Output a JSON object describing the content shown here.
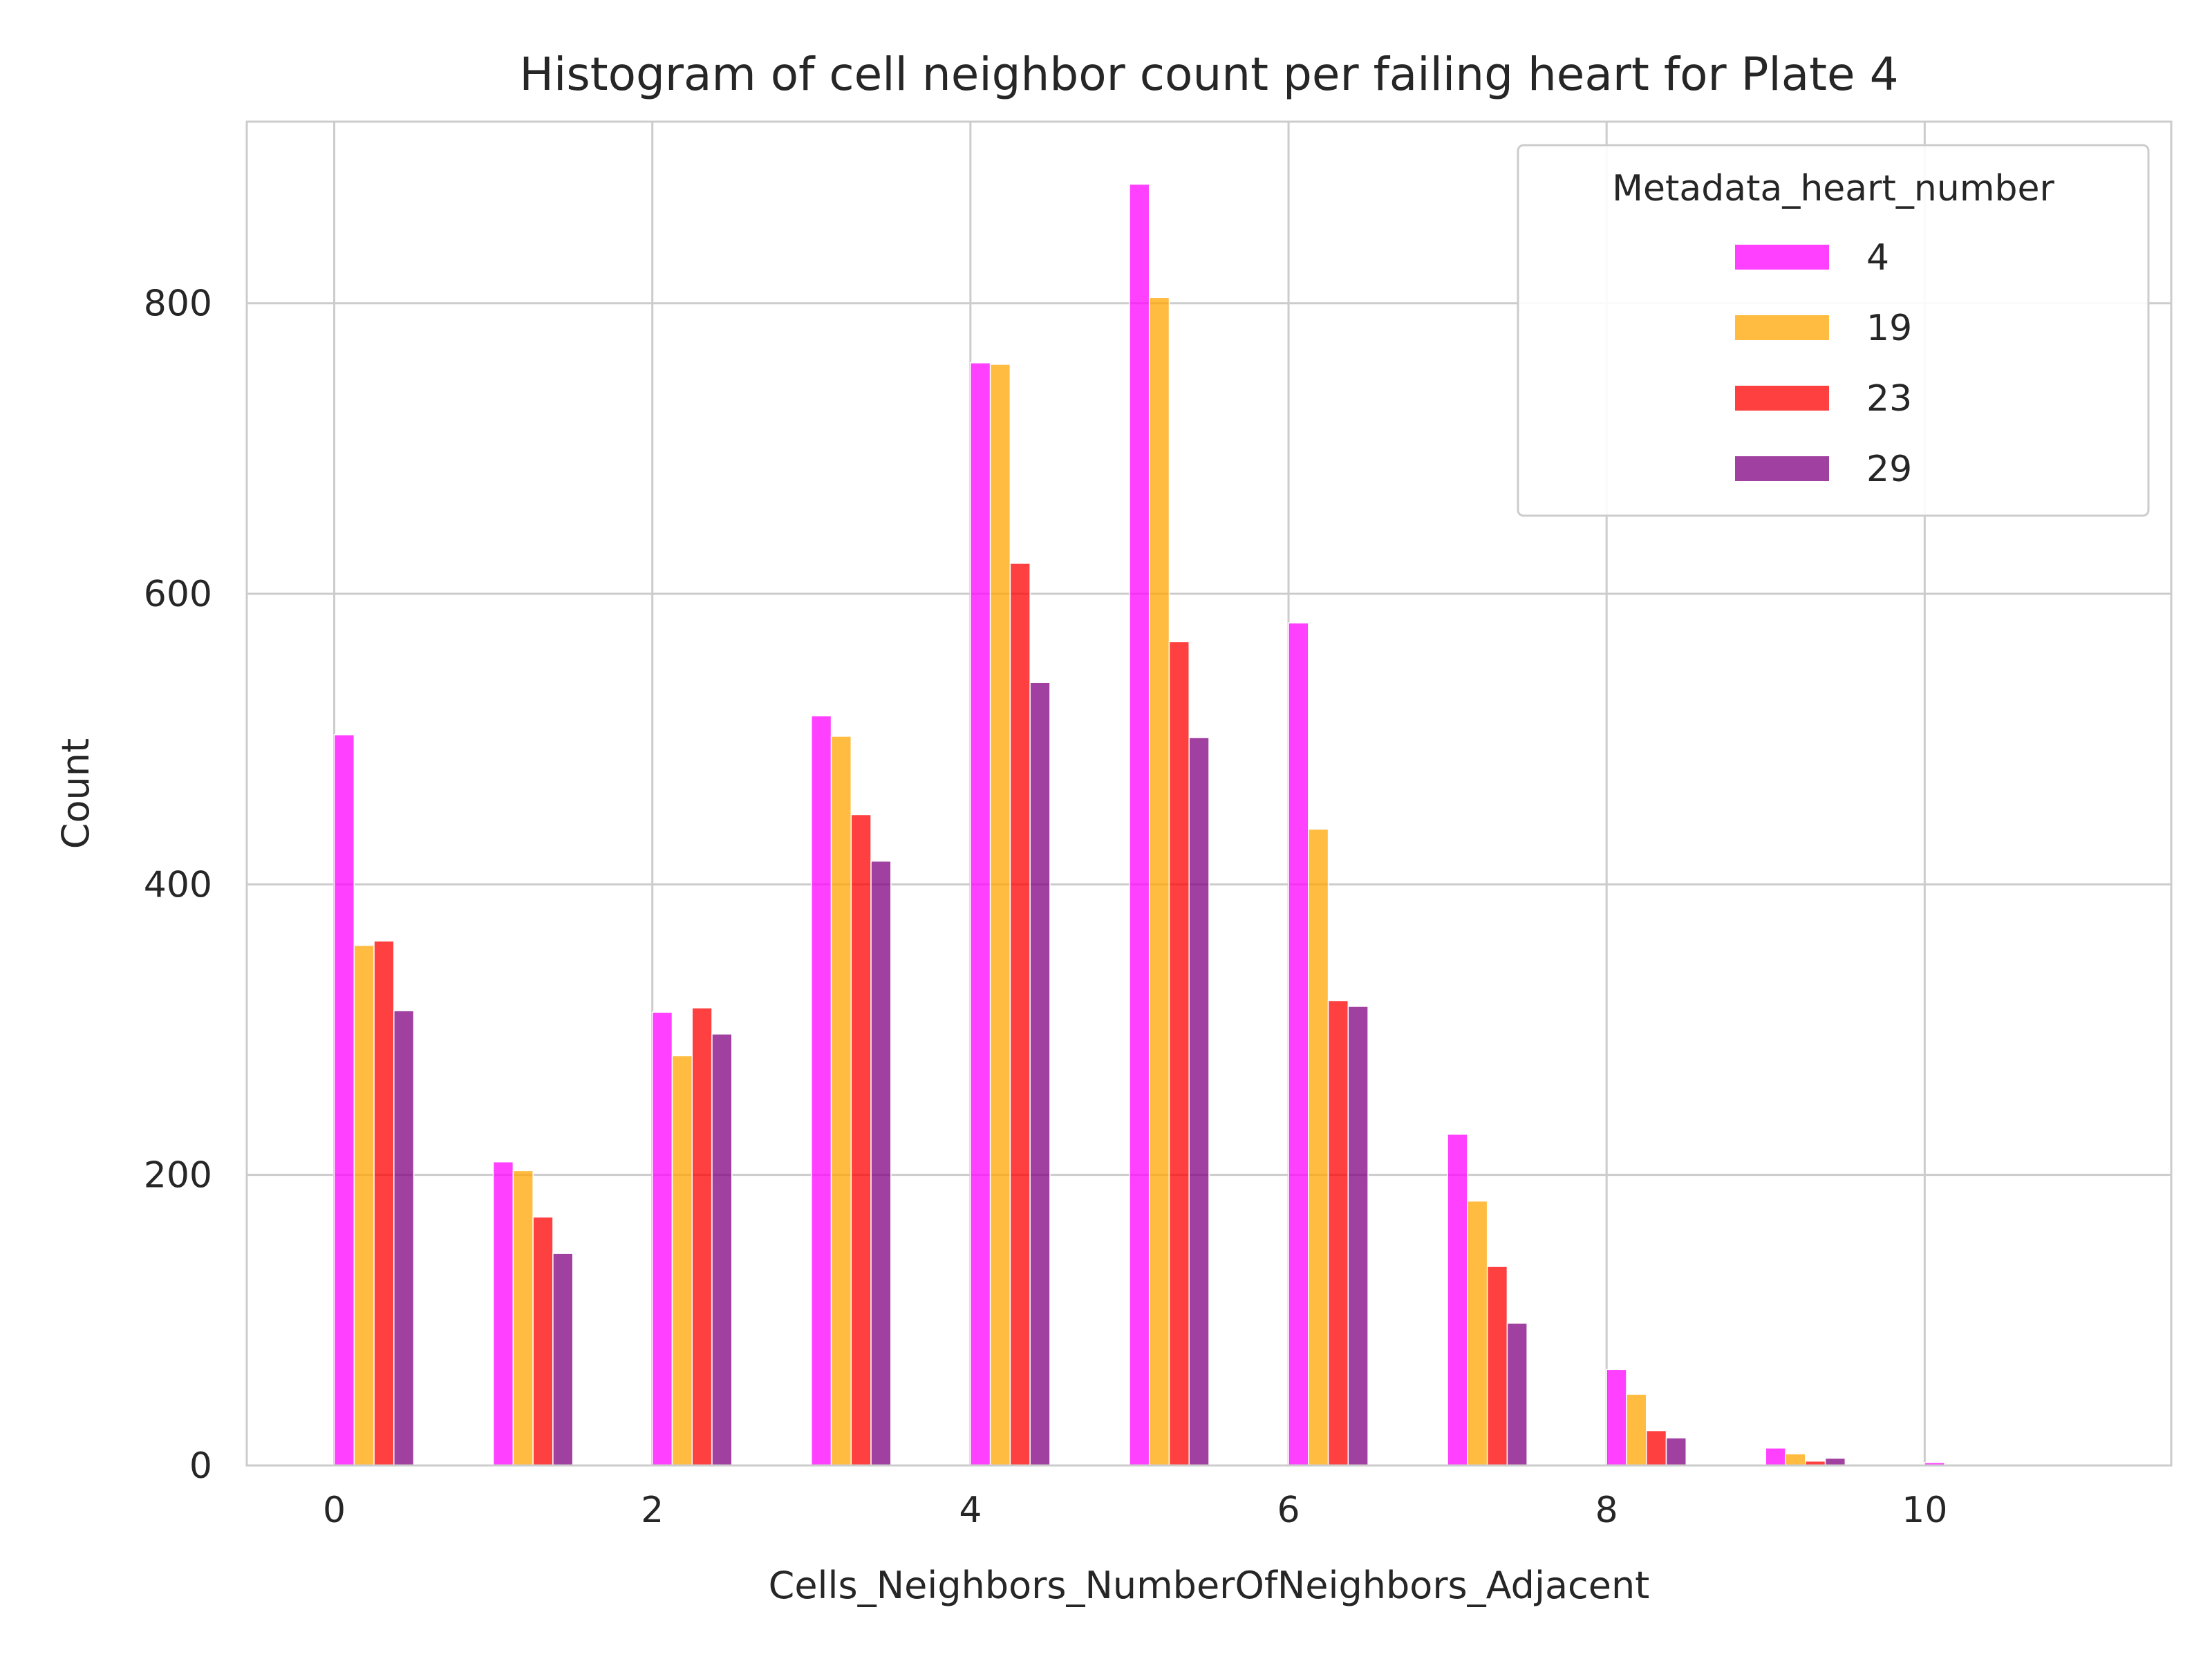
{
  "chart_data": {
    "type": "bar",
    "title": "Histogram of cell neighbor count per failing heart for Plate 4",
    "xlabel": "Cells_Neighbors_NumberOfNeighbors_Adjacent",
    "ylabel": "Count",
    "xlim": [
      -0.55,
      11.55
    ],
    "ylim": [
      0,
      925
    ],
    "xticks": [
      0,
      2,
      4,
      6,
      8,
      10
    ],
    "yticks": [
      0,
      200,
      400,
      600,
      800
    ],
    "grid": true,
    "legend": {
      "title": "Metadata_heart_number",
      "position": "top-right"
    },
    "bins": [
      0,
      1,
      2,
      3,
      4,
      5,
      6,
      7,
      8,
      9,
      10,
      11
    ],
    "series": [
      {
        "name": "4",
        "color": "#ff00ff",
        "values": [
          503,
          209,
          312,
          516,
          759,
          882,
          580,
          228,
          66,
          12,
          2,
          0
        ]
      },
      {
        "name": "19",
        "color": "#ffa500",
        "values": [
          358,
          203,
          282,
          502,
          758,
          804,
          438,
          182,
          49,
          8,
          1,
          0
        ]
      },
      {
        "name": "23",
        "color": "#ff0000",
        "values": [
          361,
          171,
          315,
          448,
          621,
          567,
          320,
          137,
          24,
          3,
          0,
          0
        ]
      },
      {
        "name": "29",
        "color": "#800080",
        "values": [
          313,
          146,
          297,
          416,
          539,
          501,
          316,
          98,
          19,
          5,
          0,
          0
        ]
      }
    ]
  }
}
